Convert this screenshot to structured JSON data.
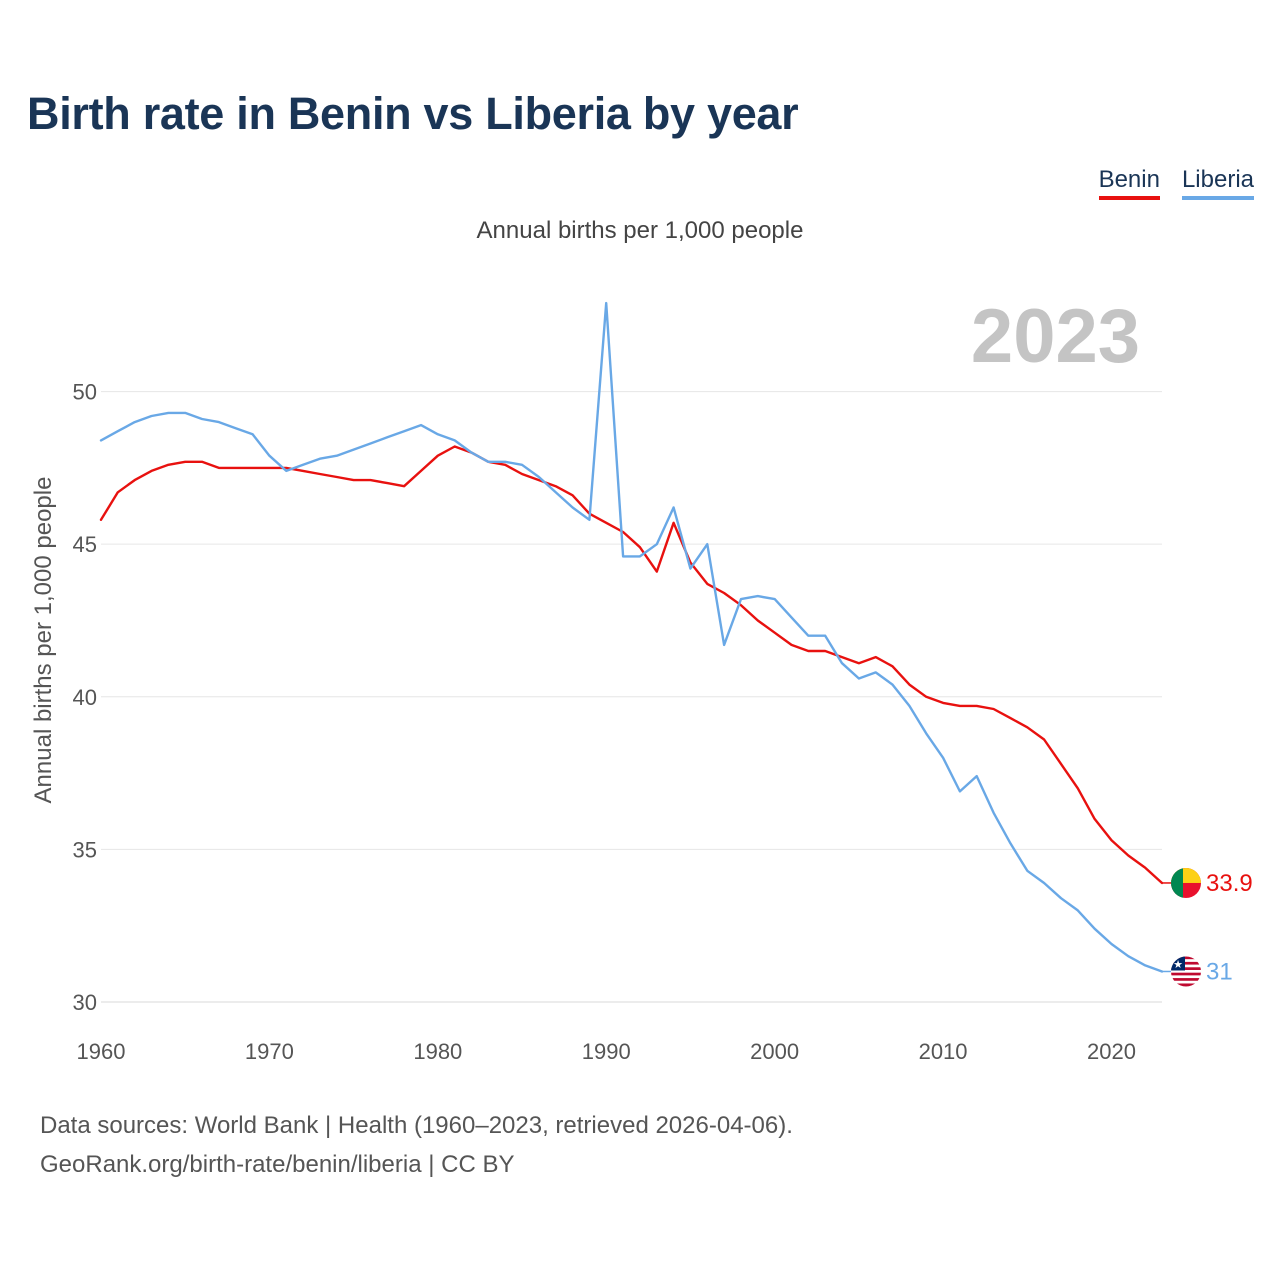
{
  "title": "Birth rate in Benin vs Liberia by year",
  "subtitle": "Annual births per 1,000 people",
  "source": {
    "line1": "Data sources: World Bank | Health (1960–2023, retrieved 2026-04-06).",
    "line2": "GeoRank.org/birth-rate/benin/liberia | CC BY"
  },
  "legend": [
    {
      "name": "Benin",
      "color": "#e8110f"
    },
    {
      "name": "Liberia",
      "color": "#69a8e6"
    }
  ],
  "chart_data": {
    "type": "line",
    "title": "Birth rate in Benin vs Liberia by year",
    "subtitle": "Annual births per 1,000 people",
    "xlabel": "",
    "ylabel": "Annual births per 1,000 people",
    "xlim": [
      1960,
      2023
    ],
    "ylim": [
      30,
      53
    ],
    "xticks": [
      1960,
      1970,
      1980,
      1990,
      2000,
      2010,
      2020
    ],
    "yticks": [
      30,
      35,
      40,
      45,
      50
    ],
    "grid": true,
    "legend_position": "top-right",
    "year_label": "2023",
    "x": [
      1960,
      1961,
      1962,
      1963,
      1964,
      1965,
      1966,
      1967,
      1968,
      1969,
      1970,
      1971,
      1972,
      1973,
      1974,
      1975,
      1976,
      1977,
      1978,
      1979,
      1980,
      1981,
      1982,
      1983,
      1984,
      1985,
      1986,
      1987,
      1988,
      1989,
      1990,
      1991,
      1992,
      1993,
      1994,
      1995,
      1996,
      1997,
      1998,
      1999,
      2000,
      2001,
      2002,
      2003,
      2004,
      2005,
      2006,
      2007,
      2008,
      2009,
      2010,
      2011,
      2012,
      2013,
      2014,
      2015,
      2016,
      2017,
      2018,
      2019,
      2020,
      2021,
      2022,
      2023
    ],
    "series": [
      {
        "name": "Benin",
        "color": "#e8110f",
        "end_label": "33.9",
        "values": [
          45.8,
          46.7,
          47.1,
          47.4,
          47.6,
          47.7,
          47.7,
          47.5,
          47.5,
          47.5,
          47.5,
          47.5,
          47.4,
          47.3,
          47.2,
          47.1,
          47.1,
          47.0,
          46.9,
          47.4,
          47.9,
          48.2,
          48.0,
          47.7,
          47.6,
          47.3,
          47.1,
          46.9,
          46.6,
          46.0,
          45.7,
          45.4,
          44.9,
          44.1,
          45.7,
          44.4,
          43.7,
          43.4,
          43.0,
          42.5,
          42.1,
          41.7,
          41.5,
          41.5,
          41.3,
          41.1,
          41.3,
          41.0,
          40.4,
          40.0,
          39.8,
          39.7,
          39.7,
          39.6,
          39.3,
          39.0,
          38.6,
          37.8,
          37.0,
          36.0,
          35.3,
          34.8,
          34.4,
          33.9
        ]
      },
      {
        "name": "Liberia",
        "color": "#69a8e6",
        "end_label": "31",
        "values": [
          48.4,
          48.7,
          49.0,
          49.2,
          49.3,
          49.3,
          49.1,
          49.0,
          48.8,
          48.6,
          47.9,
          47.4,
          47.6,
          47.8,
          47.9,
          48.1,
          48.3,
          48.5,
          48.7,
          48.9,
          48.6,
          48.4,
          48.0,
          47.7,
          47.7,
          47.6,
          47.2,
          46.7,
          46.2,
          45.8,
          52.9,
          44.6,
          44.6,
          45.0,
          46.2,
          44.2,
          45.0,
          41.7,
          43.2,
          43.3,
          43.2,
          42.6,
          42.0,
          42.0,
          41.1,
          40.6,
          40.8,
          40.4,
          39.7,
          38.8,
          38.0,
          36.9,
          37.4,
          36.2,
          35.2,
          34.3,
          33.9,
          33.4,
          33.0,
          32.4,
          31.9,
          31.5,
          31.2,
          31.0
        ]
      }
    ]
  }
}
